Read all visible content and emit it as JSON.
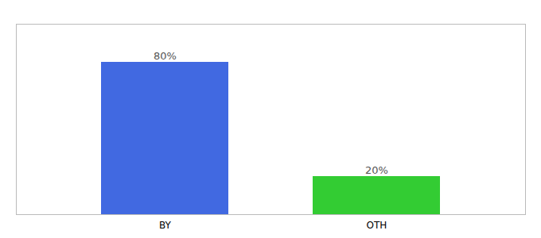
{
  "chart_data": {
    "type": "bar",
    "categories": [
      "BY",
      "OTH"
    ],
    "values": [
      80,
      20
    ],
    "colors": [
      "#4169e1",
      "#33cc33"
    ],
    "value_labels": [
      "80%",
      "20%"
    ],
    "data_labels": true,
    "ylim": [
      0,
      100
    ],
    "yticks": [],
    "tick_labels": "x"
  }
}
